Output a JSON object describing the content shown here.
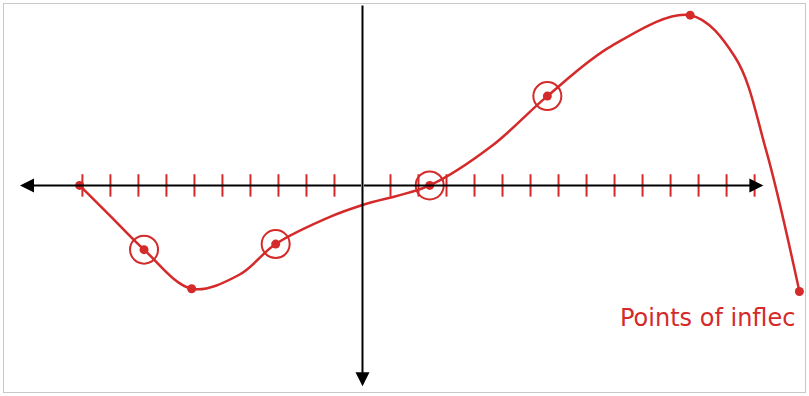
{
  "chart_data": {
    "type": "line",
    "color": "#d42a2a",
    "annotation": "Points of inflec",
    "x": [
      -10.1,
      -9,
      -7.8,
      -6.1,
      -4.4,
      -3.1,
      -1.1,
      0,
      2.4,
      4.6,
      6.6,
      8.9,
      11.7,
      13.3,
      14.4,
      15.6
    ],
    "values": [
      0,
      -1.1,
      -2.3,
      -3.7,
      -3.2,
      -2.1,
      -1.1,
      -0.7,
      0,
      1.4,
      3.2,
      5.0,
      6.1,
      4.6,
      1.3,
      -3.8
    ],
    "points": {
      "x": [
        -10.1,
        -6.1,
        11.7,
        15.6
      ],
      "values": [
        0,
        -3.7,
        6.1,
        -3.8
      ]
    },
    "inflection_points": {
      "x": [
        -7.8,
        -3.1,
        2.4,
        6.6
      ],
      "values": [
        -2.3,
        -2.1,
        0,
        3.2
      ]
    },
    "marker": "circle",
    "xlim": [
      -12.8,
      15.8
    ],
    "ylim": [
      -7.4,
      6.5
    ],
    "xticks": [
      -10,
      -9,
      -8,
      -7,
      -6,
      -5,
      -4,
      -3,
      -2,
      -1,
      1,
      2,
      3,
      4,
      5,
      6,
      7,
      8,
      9,
      10,
      11,
      12,
      13,
      14
    ],
    "tick_labels": false,
    "grid": false
  }
}
